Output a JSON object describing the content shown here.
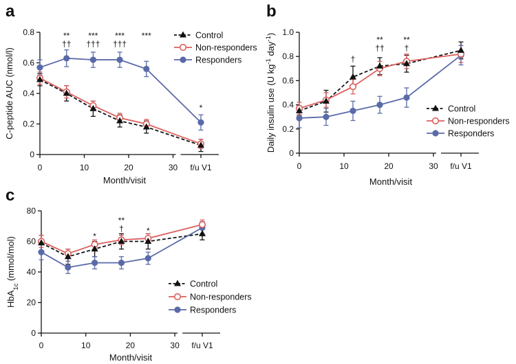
{
  "chart_data": [
    {
      "panel_label": "a",
      "type": "line",
      "xlabel": "Month/visit",
      "ylabel": [
        {
          "text": "C-peptide AUC (nmol/l)"
        }
      ],
      "ylim": [
        0,
        0.8
      ],
      "yticks": [
        {
          "value": 0,
          "label": "0"
        },
        {
          "value": 0.2,
          "label": "0.2"
        },
        {
          "value": 0.4,
          "label": "0.4"
        },
        {
          "value": 0.6,
          "label": "0.6"
        },
        {
          "value": 0.8,
          "label": "0.8"
        }
      ],
      "xticks": [
        {
          "value": 0,
          "label": "0"
        },
        {
          "value": 10,
          "label": "10"
        },
        {
          "value": 20,
          "label": "20"
        },
        {
          "value": 30,
          "label": "30"
        },
        {
          "value": "f/u V1",
          "label": "f/u V1"
        }
      ],
      "x": [
        0,
        6,
        12,
        18,
        24,
        "f/u V1"
      ],
      "legend_position": "top-right",
      "series": [
        {
          "name": "Control",
          "color": "#111111",
          "values": [
            0.49,
            0.4,
            0.3,
            0.22,
            0.18,
            0.06
          ],
          "errors": [
            0.04,
            0.05,
            0.05,
            0.04,
            0.04,
            0.04
          ]
        },
        {
          "name": "Non-responders",
          "color": "#db5f5d",
          "values": [
            0.5,
            0.41,
            0.32,
            0.24,
            0.2,
            0.07
          ],
          "errors": [
            0.04,
            0.04,
            0.03,
            0.03,
            0.03,
            0.03
          ]
        },
        {
          "name": "Responders",
          "color": "#5a6aa8",
          "values": [
            0.57,
            0.63,
            0.62,
            0.62,
            0.56,
            0.21
          ],
          "errors": [
            0.05,
            0.055,
            0.05,
            0.05,
            0.05,
            0.05
          ]
        }
      ],
      "annotations": [
        {
          "x": 6,
          "lines": [
            "**",
            "††"
          ]
        },
        {
          "x": 12,
          "lines": [
            "***",
            "†††"
          ]
        },
        {
          "x": 18,
          "lines": [
            "***",
            "†††"
          ]
        },
        {
          "x": 24,
          "lines": [
            "***"
          ]
        },
        {
          "x": "f/u V1",
          "lines": [
            "*"
          ]
        }
      ]
    },
    {
      "panel_label": "b",
      "type": "line",
      "xlabel": "Month/visit",
      "ylabel": [
        {
          "text": "Daily insulin use (U kg"
        },
        {
          "text": "-1",
          "sup": true
        },
        {
          "text": " day"
        },
        {
          "text": "-1",
          "sup": true
        },
        {
          "text": ")"
        }
      ],
      "ylim": [
        0,
        1.0
      ],
      "yticks": [
        {
          "value": 0,
          "label": "0"
        },
        {
          "value": 0.2,
          "label": "0.2"
        },
        {
          "value": 0.4,
          "label": "0.4"
        },
        {
          "value": 0.6,
          "label": "0.6"
        },
        {
          "value": 0.8,
          "label": "0.8"
        },
        {
          "value": 1.0,
          "label": "1.0"
        }
      ],
      "xticks": [
        {
          "value": 0,
          "label": "0"
        },
        {
          "value": 10,
          "label": "10"
        },
        {
          "value": 20,
          "label": "20"
        },
        {
          "value": 30,
          "label": "30"
        },
        {
          "value": "f/u V1",
          "label": "f/u V1"
        }
      ],
      "x": [
        0,
        6,
        12,
        18,
        24,
        "f/u V1"
      ],
      "legend_position": "right",
      "series": [
        {
          "name": "Control",
          "color": "#111111",
          "values": [
            0.35,
            0.43,
            0.63,
            0.72,
            0.74,
            0.85
          ],
          "errors": [
            0.04,
            0.09,
            0.09,
            0.07,
            0.07,
            0.07
          ]
        },
        {
          "name": "Non-responders",
          "color": "#db5f5d",
          "values": [
            0.37,
            0.44,
            0.55,
            0.7,
            0.76,
            0.82
          ],
          "errors": [
            0.05,
            0.06,
            0.06,
            0.06,
            0.06,
            0.07
          ]
        },
        {
          "name": "Responders",
          "color": "#5a6aa8",
          "values": [
            0.29,
            0.3,
            0.35,
            0.4,
            0.46,
            0.81
          ],
          "errors": [
            0.08,
            0.07,
            0.08,
            0.07,
            0.08,
            0.08
          ]
        }
      ],
      "annotations": [
        {
          "x": 12,
          "lines": [
            "†"
          ]
        },
        {
          "x": 18,
          "lines": [
            "**",
            "††"
          ]
        },
        {
          "x": 24,
          "lines": [
            "**",
            "†"
          ]
        }
      ]
    },
    {
      "panel_label": "c",
      "type": "line",
      "xlabel": "Month/visit",
      "ylabel": [
        {
          "text": "HbA"
        },
        {
          "text": "1c",
          "sub": true
        },
        {
          "text": " (mmol/mol)"
        }
      ],
      "ylim": [
        0,
        80
      ],
      "yticks": [
        {
          "value": 0,
          "label": "0"
        },
        {
          "value": 20,
          "label": "20"
        },
        {
          "value": 40,
          "label": "40"
        },
        {
          "value": 60,
          "label": "60"
        },
        {
          "value": 80,
          "label": "80"
        }
      ],
      "xticks": [
        {
          "value": 0,
          "label": "0"
        },
        {
          "value": 10,
          "label": "10"
        },
        {
          "value": 20,
          "label": "20"
        },
        {
          "value": 30,
          "label": "30"
        },
        {
          "value": "f/u V1",
          "label": "f/u V1"
        }
      ],
      "x": [
        0,
        6,
        12,
        18,
        24,
        "f/u V1"
      ],
      "legend_position": "center-left",
      "series": [
        {
          "name": "Control",
          "color": "#111111",
          "values": [
            59,
            50,
            55,
            60,
            60,
            65
          ],
          "errors": [
            5,
            5,
            5,
            5,
            5,
            4
          ]
        },
        {
          "name": "Non-responders",
          "color": "#db5f5d",
          "values": [
            60,
            52,
            58,
            61,
            62,
            71
          ],
          "errors": [
            4,
            3,
            3,
            3,
            3,
            3
          ]
        },
        {
          "name": "Responders",
          "color": "#5a6aa8",
          "values": [
            53,
            43,
            46,
            46,
            49,
            69
          ],
          "errors": [
            5,
            4,
            4,
            4,
            4,
            4
          ]
        }
      ],
      "annotations": [
        {
          "x": 12,
          "lines": [
            "*"
          ]
        },
        {
          "x": 18,
          "lines": [
            "**",
            "†"
          ]
        },
        {
          "x": 24,
          "lines": [
            "*"
          ]
        }
      ]
    }
  ]
}
